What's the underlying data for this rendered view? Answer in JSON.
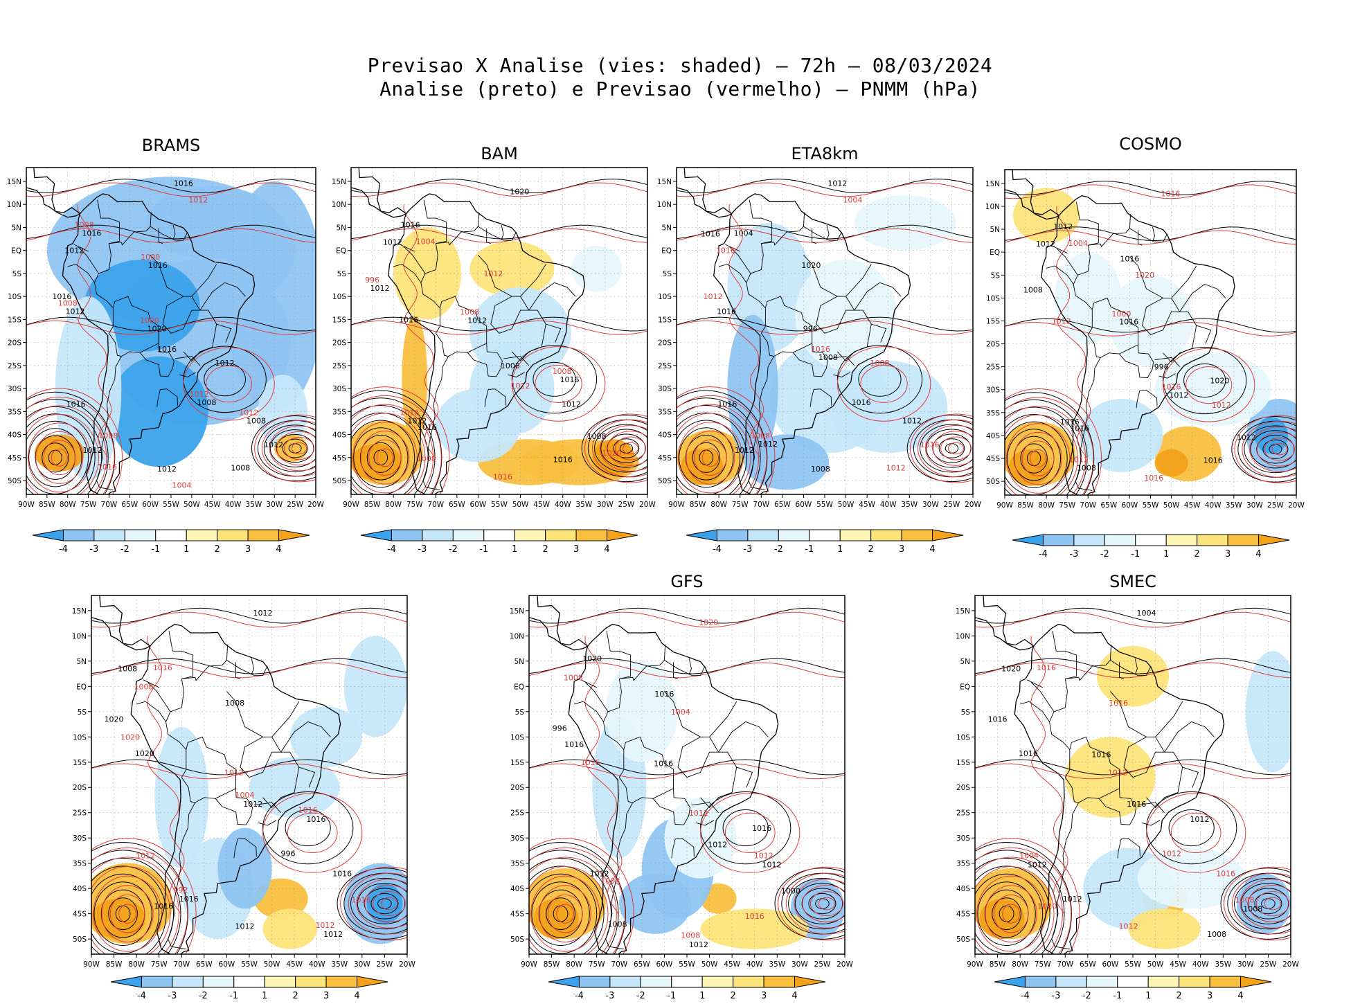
{
  "header": {
    "title_line1": "Previsao X Analise (vies: shaded) – 72h – 08/03/2024",
    "title_line2": "Analise (preto) e Previsao (vermelho) – PNMM (hPa)"
  },
  "axes": {
    "lat_labels": [
      "15N",
      "10N",
      "5N",
      "EQ",
      "5S",
      "10S",
      "15S",
      "20S",
      "25S",
      "30S",
      "35S",
      "40S",
      "45S",
      "50S"
    ],
    "lon_labels": [
      "90W",
      "85W",
      "80W",
      "75W",
      "70W",
      "65W",
      "60W",
      "55W",
      "50W",
      "45W",
      "40W",
      "35W",
      "30W",
      "25W",
      "20W"
    ]
  },
  "colorbar": {
    "labels": [
      "-4",
      "-3",
      "-2",
      "-1",
      "1",
      "2",
      "3",
      "4"
    ],
    "colors": [
      "#3aa3ec",
      "#8fc5f2",
      "#c6e7fa",
      "#e6f7fc",
      "#ffffff",
      "#fdf5b3",
      "#fde47a",
      "#f9c03f",
      "#f3a21a"
    ]
  },
  "colors": {
    "analysis_contour": "#000000",
    "forecast_contour": "#e03c3c",
    "coast": "#000000",
    "grid": "#999999"
  },
  "panels": [
    {
      "name": "BRAMS",
      "labels_black": [
        "1016",
        "1012",
        "1008",
        "1012",
        "1016",
        "1008",
        "1012",
        "1016",
        "1020",
        "1016",
        "1012",
        "1016",
        "1012",
        "1008",
        "1012",
        "1016"
      ],
      "labels_red": [
        "1008",
        "1012",
        "1008",
        "1012",
        "1004",
        "1000",
        "1012",
        "1016",
        "1008",
        "1000"
      ]
    },
    {
      "name": "BAM",
      "labels_black": [
        "1016",
        "1012",
        "1012",
        "1008",
        "1012",
        "1016",
        "1016",
        "1012",
        "1008",
        "1016",
        "1020",
        "1016",
        "1012"
      ],
      "labels_red": [
        "1016",
        "1012",
        "1012",
        "1008",
        "1004",
        "1008",
        "1016",
        "1020",
        "996",
        "1008"
      ]
    },
    {
      "name": "ETA8km",
      "labels_black": [
        "1016",
        "1008",
        "1012",
        "1012",
        "1016",
        "1012",
        "1008",
        "1020",
        "1016",
        "1012",
        "1004",
        "996",
        "1016"
      ],
      "labels_red": [
        "1016",
        "1012",
        "1008",
        "1012",
        "1016",
        "1016",
        "1008",
        "1004"
      ]
    },
    {
      "name": "COSMO",
      "labels_black": [
        "1016",
        "1012",
        "1008",
        "1012",
        "1016",
        "1016",
        "1012",
        "1008",
        "1020",
        "1016",
        "1012",
        "996",
        "1016"
      ],
      "labels_red": [
        "1016",
        "1012",
        "1012",
        "1016",
        "1020",
        "1016",
        "1012",
        "1004",
        "1000"
      ]
    },
    {
      "name": "",
      "labels_black": [
        "1020",
        "1016",
        "1012",
        "1008",
        "1012",
        "1016",
        "1012",
        "1020",
        "1016",
        "1012",
        "1008",
        "996",
        "1016"
      ],
      "labels_red": [
        "1016",
        "1012",
        "1012",
        "1016",
        "1020",
        "1016",
        "1012",
        "1008",
        "1004",
        "992"
      ]
    },
    {
      "name": "GFS",
      "labels_black": [
        "1016",
        "1012",
        "1012",
        "1016",
        "1012",
        "1008",
        "1020",
        "1016",
        "1012",
        "1000",
        "996",
        "1016"
      ],
      "labels_red": [
        "1016",
        "1008",
        "1012",
        "1008",
        "1020",
        "1016",
        "1012",
        "1008",
        "1004"
      ]
    },
    {
      "name": "SMEC",
      "labels_black": [
        "1016",
        "1012",
        "1008",
        "1016",
        "1012",
        "1008",
        "1020",
        "1016",
        "1012",
        "1004",
        "1016"
      ],
      "labels_red": [
        "1016",
        "1012",
        "1016",
        "1012",
        "1020",
        "1016",
        "1012",
        "1004",
        "1008"
      ]
    }
  ]
}
